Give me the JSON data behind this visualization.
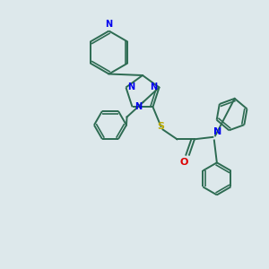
{
  "bg_color": "#dde8eb",
  "bond_color": "#2d6b52",
  "N_color": "#0000ee",
  "O_color": "#dd0000",
  "S_color": "#bbaa00",
  "lw": 1.4,
  "figsize": [
    3.0,
    3.0
  ],
  "dpi": 100,
  "xlim": [
    0,
    10
  ],
  "ylim": [
    0,
    10
  ]
}
